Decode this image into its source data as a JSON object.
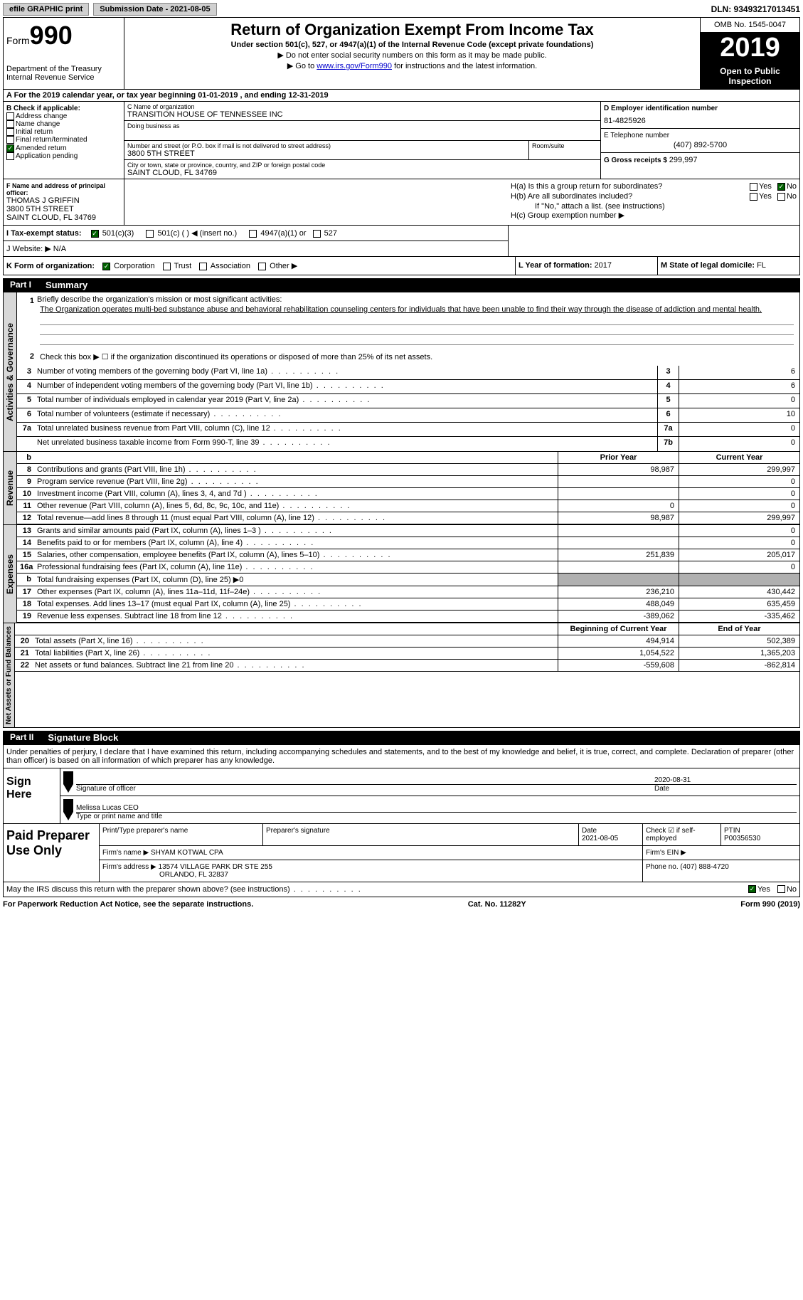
{
  "top": {
    "efile": "efile GRAPHIC print",
    "submission_label": "Submission Date - 2021-08-05",
    "dln": "DLN: 93493217013451"
  },
  "header": {
    "form_prefix": "Form",
    "form_num": "990",
    "dept": "Department of the Treasury\nInternal Revenue Service",
    "title": "Return of Organization Exempt From Income Tax",
    "subtitle": "Under section 501(c), 527, or 4947(a)(1) of the Internal Revenue Code (except private foundations)",
    "instr1": "▶ Do not enter social security numbers on this form as it may be made public.",
    "instr2_pre": "▶ Go to ",
    "instr2_link": "www.irs.gov/Form990",
    "instr2_post": " for instructions and the latest information.",
    "omb": "OMB No. 1545-0047",
    "year": "2019",
    "open": "Open to Public Inspection"
  },
  "period": "A For the 2019 calendar year, or tax year beginning 01-01-2019   , and ending 12-31-2019",
  "section_b": {
    "title": "B Check if applicable:",
    "opts": [
      "Address change",
      "Name change",
      "Initial return",
      "Final return/terminated",
      "Amended return",
      "Application pending"
    ],
    "checked_amended": true
  },
  "section_c": {
    "label": "C Name of organization",
    "org": "TRANSITION HOUSE OF TENNESSEE INC",
    "dba_label": "Doing business as",
    "addr_label": "Number and street (or P.O. box if mail is not delivered to street address)",
    "room_label": "Room/suite",
    "addr": "3800 5TH STREET",
    "city_label": "City or town, state or province, country, and ZIP or foreign postal code",
    "city": "SAINT CLOUD, FL  34769"
  },
  "section_d": {
    "label": "D Employer identification number",
    "val": "81-4825926"
  },
  "section_e": {
    "label": "E Telephone number",
    "val": "(407) 892-5700"
  },
  "section_g": {
    "label": "G Gross receipts $ ",
    "val": "299,997"
  },
  "section_f": {
    "label": "F  Name and address of principal officer:",
    "name": "THOMAS J GRIFFIN",
    "addr1": "3800 5TH STREET",
    "addr2": "SAINT CLOUD, FL  34769"
  },
  "section_h": {
    "ha": "H(a)  Is this a group return for subordinates?",
    "hb": "H(b)  Are all subordinates included?",
    "hb_note": "If \"No,\" attach a list. (see instructions)",
    "hc": "H(c)  Group exemption number ▶",
    "yes": "Yes",
    "no": "No"
  },
  "section_i": {
    "label": "I     Tax-exempt status:",
    "opts": [
      "501(c)(3)",
      "501(c) (  ) ◀ (insert no.)",
      "4947(a)(1) or",
      "527"
    ]
  },
  "section_j": {
    "label": "J    Website: ▶  ",
    "val": "N/A"
  },
  "section_k": {
    "label": "K Form of organization:",
    "opts": [
      "Corporation",
      "Trust",
      "Association",
      "Other ▶"
    ]
  },
  "section_l": {
    "label": "L Year of formation: ",
    "val": "2017"
  },
  "section_m": {
    "label": "M State of legal domicile: ",
    "val": "FL"
  },
  "part1": {
    "num": "Part I",
    "title": "Summary"
  },
  "mission": {
    "q": "Briefly describe the organization's mission or most significant activities:",
    "text": "The Organization operates multi-bed substance abuse and behavioral rehabilitation counseling centers for individuals that have been unable to find their way through the disease of addiction and mental health."
  },
  "governance": {
    "label": "Activities & Governance",
    "q2": "Check this box ▶ ☐ if the organization discontinued its operations or disposed of more than 25% of its net assets.",
    "rows": [
      {
        "n": "3",
        "t": "Number of voting members of the governing body (Part VI, line 1a)",
        "box": "3",
        "v": "6"
      },
      {
        "n": "4",
        "t": "Number of independent voting members of the governing body (Part VI, line 1b)",
        "box": "4",
        "v": "6"
      },
      {
        "n": "5",
        "t": "Total number of individuals employed in calendar year 2019 (Part V, line 2a)",
        "box": "5",
        "v": "0"
      },
      {
        "n": "6",
        "t": "Total number of volunteers (estimate if necessary)",
        "box": "6",
        "v": "10"
      },
      {
        "n": "7a",
        "t": "Total unrelated business revenue from Part VIII, column (C), line 12",
        "box": "7a",
        "v": "0"
      },
      {
        "n": "",
        "t": "Net unrelated business taxable income from Form 990-T, line 39",
        "box": "7b",
        "v": "0"
      }
    ]
  },
  "revenue": {
    "label": "Revenue",
    "header_b": "b",
    "prior": "Prior Year",
    "current": "Current Year",
    "rows": [
      {
        "n": "8",
        "t": "Contributions and grants (Part VIII, line 1h)",
        "p": "98,987",
        "c": "299,997"
      },
      {
        "n": "9",
        "t": "Program service revenue (Part VIII, line 2g)",
        "p": "",
        "c": "0"
      },
      {
        "n": "10",
        "t": "Investment income (Part VIII, column (A), lines 3, 4, and 7d )",
        "p": "",
        "c": "0"
      },
      {
        "n": "11",
        "t": "Other revenue (Part VIII, column (A), lines 5, 6d, 8c, 9c, 10c, and 11e)",
        "p": "0",
        "c": "0"
      },
      {
        "n": "12",
        "t": "Total revenue—add lines 8 through 11 (must equal Part VIII, column (A), line 12)",
        "p": "98,987",
        "c": "299,997"
      }
    ]
  },
  "expenses": {
    "label": "Expenses",
    "rows": [
      {
        "n": "13",
        "t": "Grants and similar amounts paid (Part IX, column (A), lines 1–3 )",
        "p": "",
        "c": "0"
      },
      {
        "n": "14",
        "t": "Benefits paid to or for members (Part IX, column (A), line 4)",
        "p": "",
        "c": "0"
      },
      {
        "n": "15",
        "t": "Salaries, other compensation, employee benefits (Part IX, column (A), lines 5–10)",
        "p": "251,839",
        "c": "205,017"
      },
      {
        "n": "16a",
        "t": "Professional fundraising fees (Part IX, column (A), line 11e)",
        "p": "",
        "c": "0"
      },
      {
        "n": "b",
        "t": "Total fundraising expenses (Part IX, column (D), line 25) ▶0",
        "gray": true
      },
      {
        "n": "17",
        "t": "Other expenses (Part IX, column (A), lines 11a–11d, 11f–24e)",
        "p": "236,210",
        "c": "430,442"
      },
      {
        "n": "18",
        "t": "Total expenses. Add lines 13–17 (must equal Part IX, column (A), line 25)",
        "p": "488,049",
        "c": "635,459"
      },
      {
        "n": "19",
        "t": "Revenue less expenses. Subtract line 18 from line 12",
        "p": "-389,062",
        "c": "-335,462"
      }
    ]
  },
  "netassets": {
    "label": "Net Assets or Fund Balances",
    "begin": "Beginning of Current Year",
    "end": "End of Year",
    "rows": [
      {
        "n": "20",
        "t": "Total assets (Part X, line 16)",
        "p": "494,914",
        "c": "502,389"
      },
      {
        "n": "21",
        "t": "Total liabilities (Part X, line 26)",
        "p": "1,054,522",
        "c": "1,365,203"
      },
      {
        "n": "22",
        "t": "Net assets or fund balances. Subtract line 21 from line 20",
        "p": "-559,608",
        "c": "-862,814"
      }
    ]
  },
  "part2": {
    "num": "Part II",
    "title": "Signature Block"
  },
  "declare": "Under penalties of perjury, I declare that I have examined this return, including accompanying schedules and statements, and to the best of my knowledge and belief, it is true, correct, and complete. Declaration of preparer (other than officer) is based on all information of which preparer has any knowledge.",
  "sign": {
    "here": "Sign Here",
    "sig_label": "Signature of officer",
    "date_label": "Date",
    "date_val": "2020-08-31",
    "name": "Melissa Lucas  CEO",
    "name_label": "Type or print name and title"
  },
  "preparer": {
    "title": "Paid Preparer Use Only",
    "print_label": "Print/Type preparer's name",
    "sig_label": "Preparer's signature",
    "date_label": "Date",
    "date_val": "2021-08-05",
    "check_label": "Check ☑ if self-employed",
    "ptin_label": "PTIN",
    "ptin": "P00356530",
    "firm_name_label": "Firm's name    ▶",
    "firm_name": "SHYAM KOTWAL CPA",
    "firm_ein_label": "Firm's EIN ▶",
    "firm_addr_label": "Firm's address ▶",
    "firm_addr": "13574 VILLAGE PARK DR STE 255",
    "firm_city": "ORLANDO, FL  32837",
    "phone_label": "Phone no. ",
    "phone": "(407) 888-4720"
  },
  "discuss": {
    "q": "May the IRS discuss this return with the preparer shown above? (see instructions)",
    "yes": "Yes",
    "no": "No"
  },
  "footer": {
    "left": "For Paperwork Reduction Act Notice, see the separate instructions.",
    "mid": "Cat. No. 11282Y",
    "right": "Form 990 (2019)"
  }
}
